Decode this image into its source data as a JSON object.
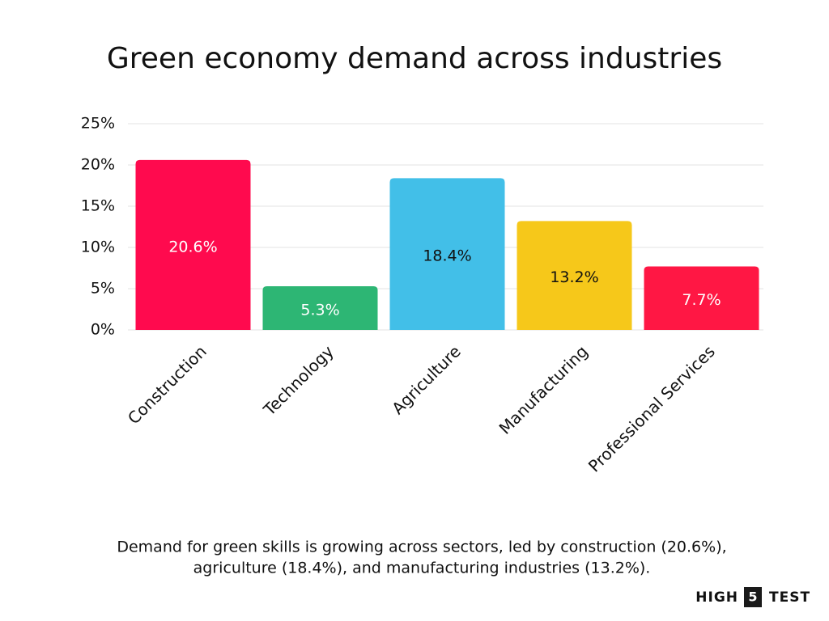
{
  "chart_data": {
    "type": "bar",
    "title": "Green economy demand across industries",
    "categories": [
      "Construction",
      "Technology",
      "Agriculture",
      "Manufacturing",
      "Professional Services"
    ],
    "values": [
      20.6,
      5.3,
      18.4,
      13.2,
      7.7
    ],
    "value_labels": [
      "20.6%",
      "5.3%",
      "18.4%",
      "13.2%",
      "7.7%"
    ],
    "colors": [
      "#ff0a4e",
      "#2db674",
      "#42bfe8",
      "#f6c81a",
      "#ff1744"
    ],
    "value_label_colors": [
      "#ffffff",
      "#ffffff",
      "#111111",
      "#111111",
      "#ffffff"
    ],
    "ylim": [
      0,
      25
    ],
    "yticks": [
      {
        "value": 0,
        "label": "0%"
      },
      {
        "value": 5,
        "label": "5%"
      },
      {
        "value": 10,
        "label": "10%"
      },
      {
        "value": 15,
        "label": "15%"
      },
      {
        "value": 20,
        "label": "20%"
      },
      {
        "value": 25,
        "label": "25%"
      }
    ],
    "grid": true,
    "caption": [
      "Demand for green skills is growing across sectors, led by construction (20.6%),",
      "agriculture (18.4%), and manufacturing industries (13.2%)."
    ]
  },
  "logo": {
    "left": "HIGH",
    "middle": "5",
    "right": "TEST"
  }
}
